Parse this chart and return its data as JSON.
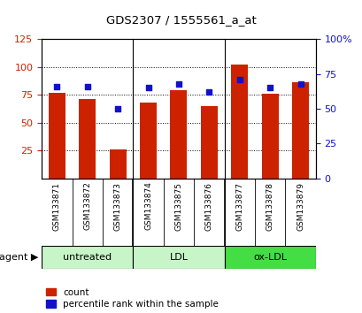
{
  "title": "GDS2307 / 1555561_a_at",
  "samples": [
    "GSM133871",
    "GSM133872",
    "GSM133873",
    "GSM133874",
    "GSM133875",
    "GSM133876",
    "GSM133877",
    "GSM133878",
    "GSM133879"
  ],
  "count_values": [
    77,
    71,
    26,
    68,
    79,
    65,
    102,
    76,
    86
  ],
  "percentile_values": [
    66,
    66,
    50,
    65,
    68,
    62,
    71,
    65,
    68
  ],
  "groups": [
    {
      "label": "untreated",
      "indices": [
        0,
        1,
        2
      ],
      "color": "#c8f5c8"
    },
    {
      "label": "LDL",
      "indices": [
        3,
        4,
        5
      ],
      "color": "#c8f5c8"
    },
    {
      "label": "ox-LDL",
      "indices": [
        6,
        7,
        8
      ],
      "color": "#44dd44"
    }
  ],
  "ylim_left": [
    0,
    125
  ],
  "ylim_right": [
    0,
    100
  ],
  "yticks_left": [
    25,
    50,
    75,
    100,
    125
  ],
  "ytick_labels_left": [
    "25",
    "50",
    "75",
    "100",
    "125"
  ],
  "yticks_right": [
    0,
    25,
    50,
    75,
    100
  ],
  "ytick_labels_right": [
    "0",
    "25",
    "50",
    "75",
    "100%"
  ],
  "bar_color": "#cc2200",
  "dot_color": "#1111cc",
  "bar_width": 0.55,
  "label_count": "count",
  "label_percentile": "percentile rank within the sample",
  "left_tick_color": "#cc2200",
  "right_tick_color": "#1111cc",
  "group_separator_color": "#000000",
  "sample_bg_color": "#d4d4d4"
}
